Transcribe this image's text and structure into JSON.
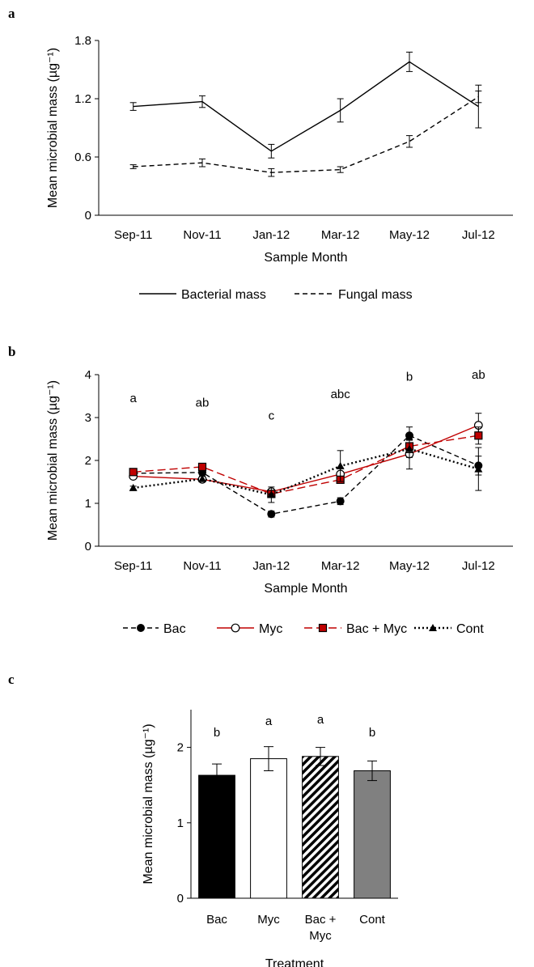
{
  "chart_data": [
    {
      "panel": "a",
      "type": "line",
      "xlabel": "Sample Month",
      "ylabel": "Mean microbial mass (µg⁻¹)",
      "ylim": [
        0,
        1.8
      ],
      "yticks": [
        "0",
        "0.6",
        "1.2",
        "1.8"
      ],
      "grid": false,
      "legend": "bottom",
      "categories": [
        "Sep-11",
        "Nov-11",
        "Jan-12",
        "Mar-12",
        "May-12",
        "Jul-12"
      ],
      "series": [
        {
          "name": "Bacterial mass",
          "values": [
            1.12,
            1.17,
            0.66,
            1.08,
            1.58,
            1.12
          ],
          "errors": [
            0.04,
            0.06,
            0.07,
            0.12,
            0.1,
            0.22
          ],
          "color": "#000000",
          "dash": "solid",
          "marker": "none"
        },
        {
          "name": "Fungal mass",
          "values": [
            0.5,
            0.54,
            0.44,
            0.47,
            0.76,
            1.22
          ],
          "errors": [
            0.02,
            0.04,
            0.04,
            0.03,
            0.06,
            0.06
          ],
          "color": "#000000",
          "dash": "dashed",
          "marker": "none"
        }
      ]
    },
    {
      "panel": "b",
      "type": "line",
      "xlabel": "Sample Month",
      "ylabel": "Mean microbial mass (µg⁻¹)",
      "ylim": [
        0,
        4
      ],
      "yticks": [
        "0",
        "1",
        "2",
        "3",
        "4"
      ],
      "grid": false,
      "legend": "bottom",
      "categories": [
        "Sep-11",
        "Nov-11",
        "Jan-12",
        "Mar-12",
        "May-12",
        "Jul-12"
      ],
      "annotations": [
        "a",
        "ab",
        "c",
        "abc",
        "b",
        "ab"
      ],
      "annotation_values": [
        3.45,
        3.35,
        3.05,
        3.55,
        3.95,
        4.0
      ],
      "series": [
        {
          "name": "Bac",
          "values": [
            1.7,
            1.72,
            0.75,
            1.05,
            2.58,
            1.88
          ],
          "errors": [
            0.05,
            0.08,
            0.07,
            0.08,
            0.2,
            0.22
          ],
          "color": "#000000",
          "dash": "dashed",
          "marker": "filled-circle"
        },
        {
          "name": "Myc",
          "values": [
            1.63,
            1.56,
            1.27,
            1.68,
            2.15,
            2.82
          ],
          "errors": [
            0.05,
            0.05,
            0.06,
            0.15,
            0.35,
            0.28
          ],
          "color": "#c00000",
          "dash": "solid",
          "marker": "open-circle"
        },
        {
          "name": "Bac + Myc",
          "values": [
            1.73,
            1.85,
            1.22,
            1.55,
            2.33,
            2.58
          ],
          "errors": [
            0.05,
            0.05,
            0.06,
            0.08,
            0.15,
            0.2
          ],
          "color": "#c00000",
          "dash": "longdash",
          "marker": "filled-square"
        },
        {
          "name": "Cont",
          "values": [
            1.36,
            1.57,
            1.2,
            1.87,
            2.27,
            1.8
          ],
          "errors": [
            0.04,
            0.06,
            0.18,
            0.36,
            0.2,
            0.5
          ],
          "color": "#000000",
          "dash": "dotted",
          "marker": "filled-triangle"
        }
      ]
    },
    {
      "panel": "c",
      "type": "bar",
      "xlabel": "Treatment",
      "ylabel": "Mean microbial mass (µg⁻¹)",
      "ylim": [
        0,
        2.5
      ],
      "yticks": [
        "0",
        "1",
        "2"
      ],
      "ytick_values": [
        0,
        1,
        2
      ],
      "grid": false,
      "categories": [
        [
          "Bac"
        ],
        [
          "Myc"
        ],
        [
          "Bac +",
          "Myc"
        ],
        [
          "Cont"
        ]
      ],
      "values": [
        1.63,
        1.85,
        1.88,
        1.69
      ],
      "errors": [
        0.15,
        0.16,
        0.12,
        0.13
      ],
      "annotations": [
        "b",
        "a",
        "a",
        "b"
      ],
      "annotation_values": [
        2.2,
        2.35,
        2.37,
        2.2
      ],
      "fills": [
        "black",
        "white",
        "hatched",
        "gray"
      ]
    }
  ]
}
